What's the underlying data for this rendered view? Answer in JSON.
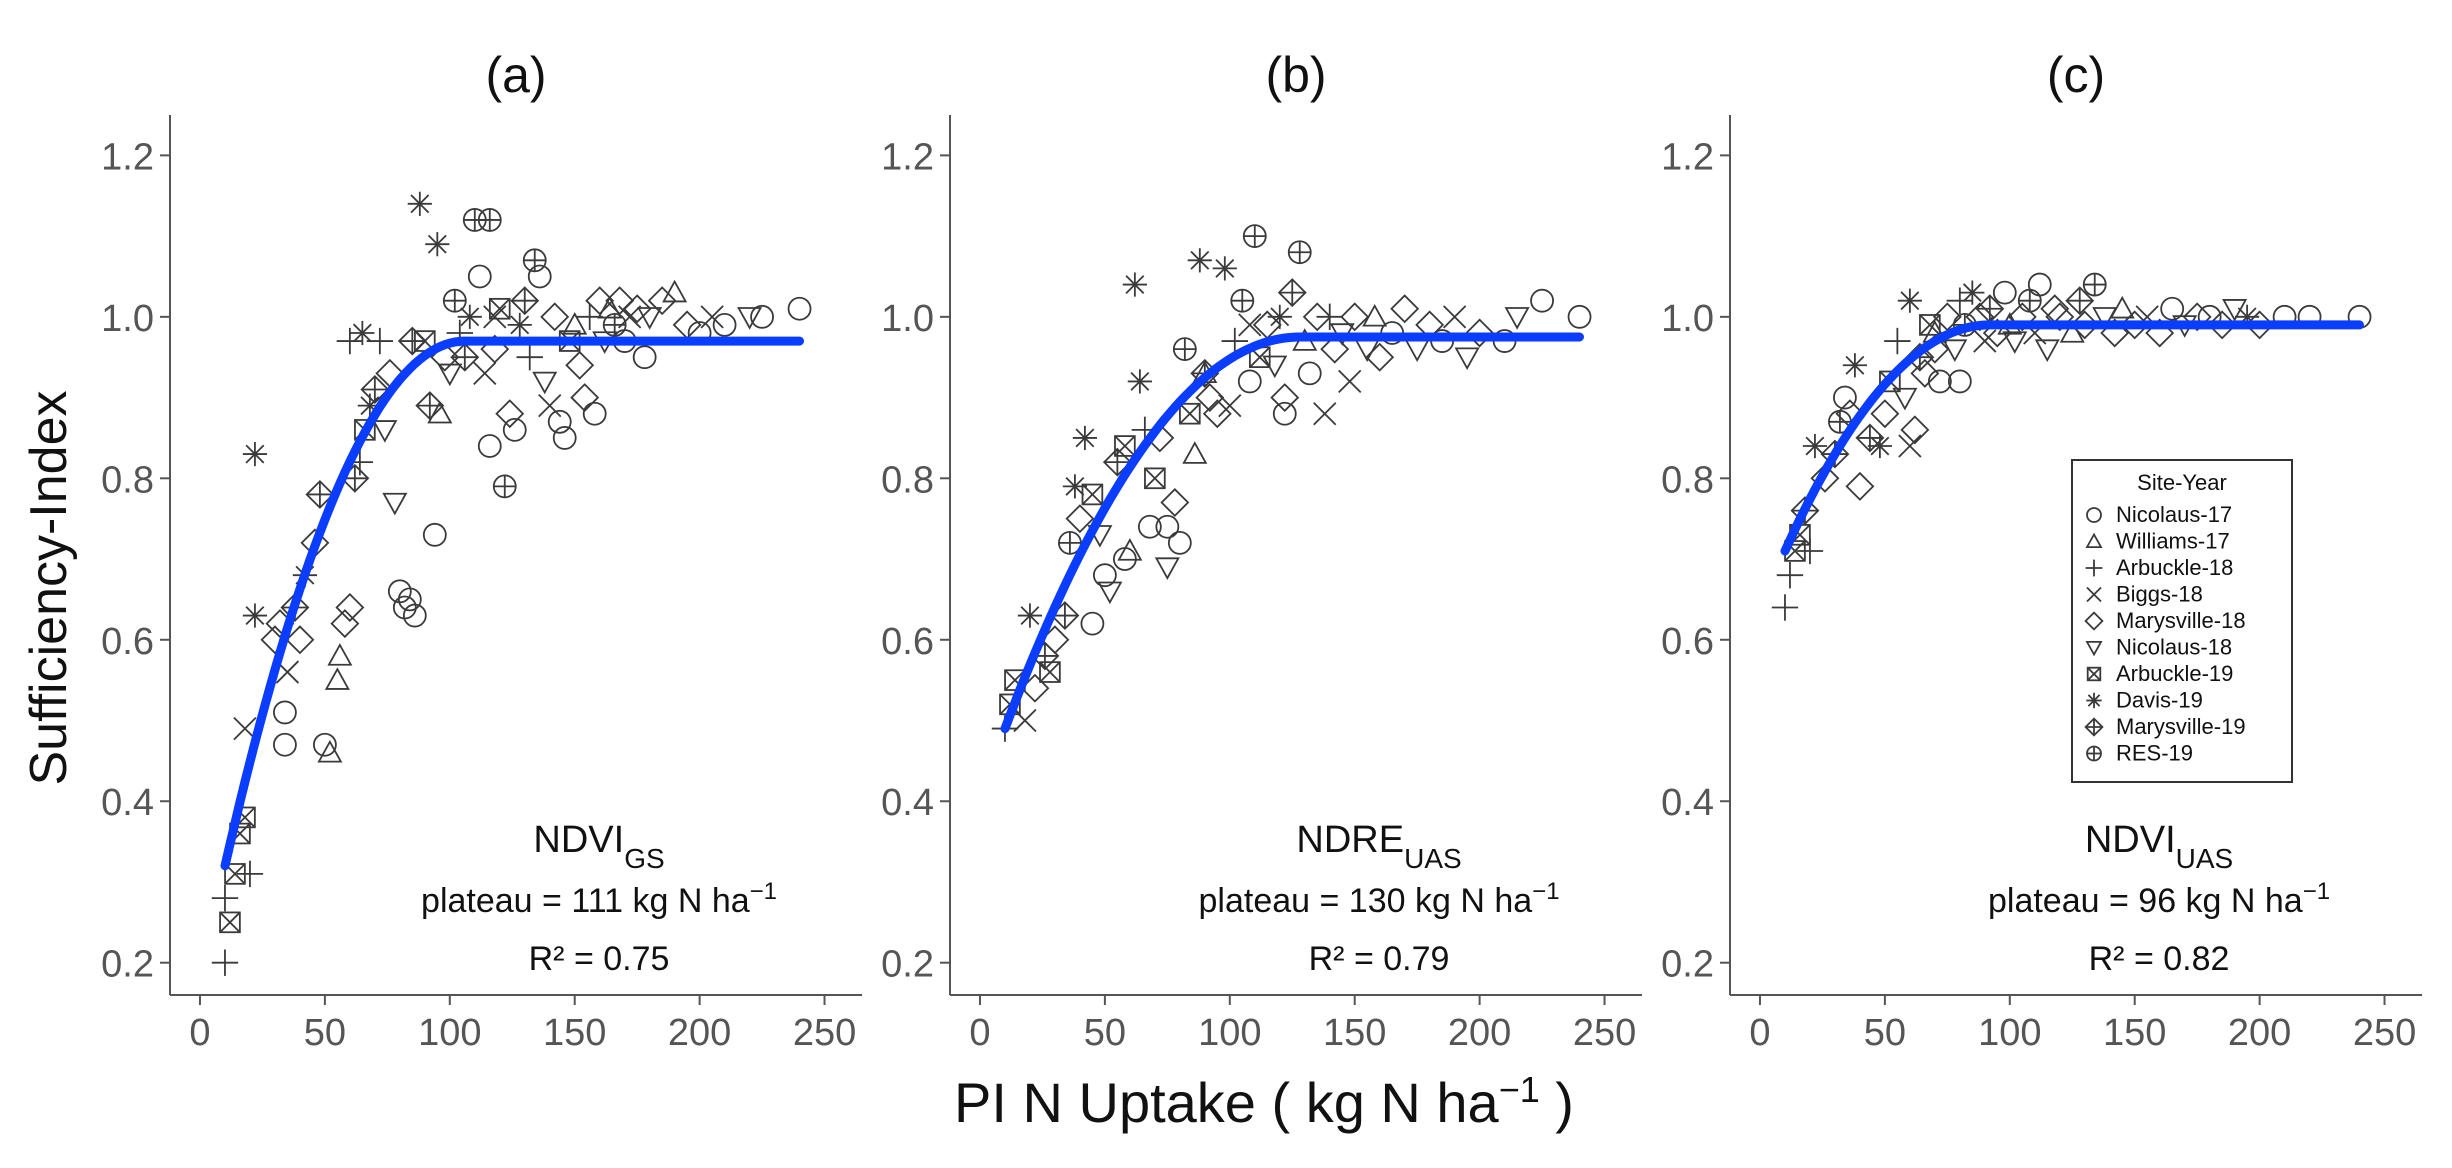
{
  "figure": {
    "ylabel": "Sufficiency-Index",
    "xlabel_main": "PI N Uptake ( kg N ha",
    "xlabel_sup": "−1",
    "xlabel_end": " )"
  },
  "legend": {
    "title": "Site-Year",
    "entries": [
      {
        "name": "Nicolaus-17",
        "marker": "circle"
      },
      {
        "name": "Williams-17",
        "marker": "triangle-up"
      },
      {
        "name": "Arbuckle-18",
        "marker": "plus"
      },
      {
        "name": "Biggs-18",
        "marker": "cross"
      },
      {
        "name": "Marysville-18",
        "marker": "diamond"
      },
      {
        "name": "Nicolaus-18",
        "marker": "triangle-down"
      },
      {
        "name": "Arbuckle-19",
        "marker": "square-cross"
      },
      {
        "name": "Davis-19",
        "marker": "asterisk"
      },
      {
        "name": "Marysville-19",
        "marker": "diamond-plus"
      },
      {
        "name": "RES-19",
        "marker": "circle-plus"
      }
    ]
  },
  "colors": {
    "fit": "#0a3dff",
    "points": "#3a3a3a",
    "axis": "#555555",
    "text": "#111111",
    "ticks": "#555555"
  },
  "chart_data": [
    {
      "type": "scatter",
      "panel_label": "(a)",
      "index_main": "NDVI",
      "index_sub": "GS",
      "plateau_text": "plateau = 111 kg N ha",
      "plateau_sup": "−1",
      "r2_text": "R² = 0.75",
      "xlim": [
        -12,
        265
      ],
      "ylim": [
        0.16,
        1.25
      ],
      "xticks": [
        0,
        50,
        100,
        150,
        200,
        250
      ],
      "yticks": [
        0.2,
        0.4,
        0.6,
        0.8,
        1.0,
        1.2
      ],
      "ytick_labels": [
        "0.2",
        "0.4",
        "0.6",
        "0.8",
        "1.0",
        "1.2"
      ],
      "fit": {
        "model": "quadratic-plateau",
        "x_start": 10,
        "x_plateau": 106,
        "y_start": 0.32,
        "plateau": 0.97,
        "x_end": 240,
        "plateau_xnote": 111
      },
      "points": [
        [
          10,
          0.2,
          2
        ],
        [
          10,
          0.28,
          2
        ],
        [
          12,
          0.25,
          6
        ],
        [
          14,
          0.31,
          6
        ],
        [
          16,
          0.36,
          6
        ],
        [
          18,
          0.38,
          6
        ],
        [
          20,
          0.31,
          2
        ],
        [
          18,
          0.49,
          3
        ],
        [
          22,
          0.83,
          7
        ],
        [
          22,
          0.63,
          7
        ],
        [
          30,
          0.6,
          4
        ],
        [
          32,
          0.62,
          4
        ],
        [
          34,
          0.47,
          0
        ],
        [
          34,
          0.51,
          0
        ],
        [
          35,
          0.56,
          3
        ],
        [
          38,
          0.64,
          8
        ],
        [
          40,
          0.6,
          4
        ],
        [
          42,
          0.68,
          7
        ],
        [
          46,
          0.72,
          4
        ],
        [
          48,
          0.78,
          8
        ],
        [
          50,
          0.47,
          0
        ],
        [
          52,
          0.46,
          1
        ],
        [
          55,
          0.55,
          1
        ],
        [
          56,
          0.58,
          1
        ],
        [
          58,
          0.62,
          4
        ],
        [
          60,
          0.64,
          4
        ],
        [
          62,
          0.8,
          8
        ],
        [
          64,
          0.82,
          2
        ],
        [
          66,
          0.86,
          6
        ],
        [
          68,
          0.89,
          7
        ],
        [
          70,
          0.91,
          8
        ],
        [
          72,
          0.97,
          2
        ],
        [
          74,
          0.86,
          5
        ],
        [
          76,
          0.93,
          4
        ],
        [
          78,
          0.77,
          5
        ],
        [
          80,
          0.66,
          0
        ],
        [
          82,
          0.64,
          0
        ],
        [
          84,
          0.65,
          0
        ],
        [
          86,
          0.63,
          0
        ],
        [
          88,
          1.14,
          7
        ],
        [
          90,
          0.97,
          6
        ],
        [
          92,
          0.89,
          8
        ],
        [
          94,
          0.73,
          0
        ],
        [
          96,
          0.88,
          1
        ],
        [
          98,
          0.95,
          4
        ],
        [
          100,
          0.93,
          5
        ],
        [
          102,
          1.02,
          9
        ],
        [
          104,
          0.98,
          2
        ],
        [
          106,
          0.95,
          8
        ],
        [
          108,
          1.0,
          7
        ],
        [
          110,
          1.12,
          9
        ],
        [
          112,
          1.05,
          0
        ],
        [
          114,
          0.93,
          3
        ],
        [
          116,
          0.84,
          0
        ],
        [
          118,
          0.96,
          4
        ],
        [
          120,
          1.01,
          6
        ],
        [
          122,
          0.79,
          9
        ],
        [
          124,
          0.88,
          4
        ],
        [
          126,
          0.86,
          0
        ],
        [
          128,
          0.99,
          7
        ],
        [
          130,
          1.02,
          8
        ],
        [
          132,
          0.95,
          2
        ],
        [
          134,
          1.07,
          9
        ],
        [
          136,
          1.05,
          0
        ],
        [
          138,
          0.92,
          5
        ],
        [
          140,
          0.89,
          3
        ],
        [
          142,
          1.0,
          4
        ],
        [
          144,
          0.87,
          0
        ],
        [
          146,
          0.85,
          0
        ],
        [
          148,
          0.97,
          6
        ],
        [
          150,
          0.99,
          1
        ],
        [
          152,
          0.94,
          4
        ],
        [
          154,
          0.9,
          4
        ],
        [
          156,
          1.0,
          2
        ],
        [
          158,
          0.88,
          0
        ],
        [
          160,
          1.02,
          4
        ],
        [
          162,
          0.97,
          5
        ],
        [
          164,
          1.01,
          1
        ],
        [
          166,
          0.99,
          9
        ],
        [
          168,
          1.02,
          4
        ],
        [
          170,
          0.97,
          0
        ],
        [
          172,
          1.0,
          3
        ],
        [
          175,
          1.01,
          4
        ],
        [
          178,
          0.95,
          0
        ],
        [
          180,
          1.0,
          5
        ],
        [
          185,
          1.02,
          4
        ],
        [
          190,
          1.03,
          1
        ],
        [
          195,
          0.99,
          4
        ],
        [
          200,
          0.98,
          0
        ],
        [
          205,
          1.0,
          3
        ],
        [
          210,
          0.99,
          0
        ],
        [
          220,
          1.0,
          5
        ],
        [
          225,
          1.0,
          0
        ],
        [
          240,
          1.01,
          0
        ],
        [
          60,
          0.97,
          2
        ],
        [
          65,
          0.98,
          7
        ],
        [
          85,
          0.97,
          8
        ],
        [
          95,
          1.09,
          7
        ],
        [
          116,
          1.12,
          9
        ],
        [
          118,
          1.0,
          3
        ]
      ]
    },
    {
      "type": "scatter",
      "panel_label": "(b)",
      "index_main": "NDRE",
      "index_sub": "UAS",
      "plateau_text": "plateau = 130 kg N ha",
      "plateau_sup": "−1",
      "r2_text": "R² = 0.79",
      "xlim": [
        -12,
        265
      ],
      "ylim": [
        0.16,
        1.25
      ],
      "xticks": [
        0,
        50,
        100,
        150,
        200,
        250
      ],
      "yticks": [
        0.2,
        0.4,
        0.6,
        0.8,
        1.0,
        1.2
      ],
      "ytick_labels": [
        "0.2",
        "0.4",
        "0.6",
        "0.8",
        "1.0",
        "1.2"
      ],
      "fit": {
        "model": "quadratic-plateau",
        "x_start": 10,
        "x_plateau": 128,
        "y_start": 0.49,
        "plateau": 0.975,
        "x_end": 240,
        "plateau_xnote": 130
      },
      "points": [
        [
          10,
          0.49,
          2
        ],
        [
          12,
          0.52,
          6
        ],
        [
          14,
          0.55,
          6
        ],
        [
          18,
          0.5,
          3
        ],
        [
          20,
          0.63,
          7
        ],
        [
          22,
          0.54,
          4
        ],
        [
          26,
          0.58,
          8
        ],
        [
          28,
          0.56,
          6
        ],
        [
          30,
          0.6,
          4
        ],
        [
          34,
          0.63,
          8
        ],
        [
          36,
          0.72,
          9
        ],
        [
          38,
          0.79,
          7
        ],
        [
          40,
          0.75,
          4
        ],
        [
          42,
          0.85,
          7
        ],
        [
          45,
          0.78,
          6
        ],
        [
          48,
          0.73,
          5
        ],
        [
          50,
          0.68,
          0
        ],
        [
          52,
          0.66,
          5
        ],
        [
          55,
          0.82,
          8
        ],
        [
          58,
          0.84,
          6
        ],
        [
          60,
          0.71,
          1
        ],
        [
          62,
          1.04,
          7
        ],
        [
          64,
          0.92,
          7
        ],
        [
          66,
          0.86,
          2
        ],
        [
          68,
          0.74,
          0
        ],
        [
          70,
          0.8,
          6
        ],
        [
          72,
          0.85,
          4
        ],
        [
          75,
          0.69,
          5
        ],
        [
          78,
          0.77,
          4
        ],
        [
          80,
          0.72,
          0
        ],
        [
          82,
          0.96,
          9
        ],
        [
          84,
          0.88,
          6
        ],
        [
          86,
          0.83,
          1
        ],
        [
          88,
          1.07,
          7
        ],
        [
          90,
          0.93,
          8
        ],
        [
          92,
          0.9,
          4
        ],
        [
          95,
          0.88,
          4
        ],
        [
          98,
          1.06,
          7
        ],
        [
          100,
          0.89,
          3
        ],
        [
          102,
          0.97,
          2
        ],
        [
          105,
          1.02,
          9
        ],
        [
          108,
          0.92,
          0
        ],
        [
          110,
          1.1,
          9
        ],
        [
          112,
          0.95,
          6
        ],
        [
          115,
          0.99,
          4
        ],
        [
          118,
          0.94,
          5
        ],
        [
          120,
          1.0,
          7
        ],
        [
          122,
          0.88,
          0
        ],
        [
          125,
          1.03,
          8
        ],
        [
          128,
          1.08,
          9
        ],
        [
          130,
          0.97,
          1
        ],
        [
          132,
          0.93,
          0
        ],
        [
          135,
          1.0,
          4
        ],
        [
          138,
          0.88,
          3
        ],
        [
          140,
          1.0,
          2
        ],
        [
          142,
          0.96,
          4
        ],
        [
          145,
          0.98,
          5
        ],
        [
          148,
          0.92,
          3
        ],
        [
          150,
          1.0,
          4
        ],
        [
          155,
          0.96,
          5
        ],
        [
          158,
          1.0,
          1
        ],
        [
          160,
          0.95,
          4
        ],
        [
          165,
          0.98,
          0
        ],
        [
          170,
          1.01,
          4
        ],
        [
          175,
          0.96,
          5
        ],
        [
          180,
          0.99,
          4
        ],
        [
          185,
          0.97,
          0
        ],
        [
          190,
          1.0,
          3
        ],
        [
          195,
          0.95,
          5
        ],
        [
          200,
          0.98,
          4
        ],
        [
          210,
          0.97,
          0
        ],
        [
          215,
          1.0,
          5
        ],
        [
          225,
          1.02,
          0
        ],
        [
          240,
          1.0,
          0
        ],
        [
          45,
          0.62,
          0
        ],
        [
          58,
          0.7,
          0
        ],
        [
          75,
          0.74,
          0
        ],
        [
          90,
          0.93,
          1
        ],
        [
          108,
          0.99,
          3
        ],
        [
          122,
          0.9,
          4
        ]
      ]
    },
    {
      "type": "scatter",
      "panel_label": "(c)",
      "index_main": "NDVI",
      "index_sub": "UAS",
      "plateau_text": "plateau = 96 kg N ha",
      "plateau_sup": "−1",
      "r2_text": "R² = 0.82",
      "xlim": [
        -12,
        265
      ],
      "ylim": [
        0.16,
        1.25
      ],
      "xticks": [
        0,
        50,
        100,
        150,
        200,
        250
      ],
      "yticks": [
        0.2,
        0.4,
        0.6,
        0.8,
        1.0,
        1.2
      ],
      "ytick_labels": [
        "0.2",
        "0.4",
        "0.6",
        "0.8",
        "1.0",
        "1.2"
      ],
      "fit": {
        "model": "quadratic-plateau",
        "x_start": 10,
        "x_plateau": 92,
        "y_start": 0.71,
        "plateau": 0.99,
        "x_end": 240,
        "plateau_xnote": 96
      },
      "points": [
        [
          10,
          0.64,
          2
        ],
        [
          12,
          0.68,
          2
        ],
        [
          14,
          0.71,
          6
        ],
        [
          16,
          0.73,
          6
        ],
        [
          18,
          0.76,
          8
        ],
        [
          20,
          0.71,
          2
        ],
        [
          22,
          0.84,
          7
        ],
        [
          26,
          0.8,
          4
        ],
        [
          30,
          0.83,
          8
        ],
        [
          32,
          0.87,
          9
        ],
        [
          34,
          0.9,
          0
        ],
        [
          36,
          0.88,
          4
        ],
        [
          38,
          0.94,
          7
        ],
        [
          40,
          0.79,
          4
        ],
        [
          44,
          0.85,
          8
        ],
        [
          48,
          0.84,
          7
        ],
        [
          50,
          0.88,
          4
        ],
        [
          52,
          0.92,
          6
        ],
        [
          55,
          0.97,
          2
        ],
        [
          58,
          0.9,
          5
        ],
        [
          60,
          1.02,
          7
        ],
        [
          62,
          0.86,
          4
        ],
        [
          64,
          0.95,
          8
        ],
        [
          66,
          0.93,
          4
        ],
        [
          68,
          0.99,
          6
        ],
        [
          70,
          0.98,
          1
        ],
        [
          72,
          0.92,
          0
        ],
        [
          75,
          1.0,
          4
        ],
        [
          78,
          0.96,
          5
        ],
        [
          80,
          1.02,
          2
        ],
        [
          82,
          0.99,
          9
        ],
        [
          85,
          1.03,
          7
        ],
        [
          88,
          1.0,
          4
        ],
        [
          90,
          0.97,
          3
        ],
        [
          92,
          1.01,
          8
        ],
        [
          95,
          0.98,
          4
        ],
        [
          98,
          1.03,
          0
        ],
        [
          100,
          0.99,
          1
        ],
        [
          102,
          0.97,
          5
        ],
        [
          105,
          1.0,
          4
        ],
        [
          108,
          1.02,
          9
        ],
        [
          110,
          0.98,
          3
        ],
        [
          112,
          1.04,
          0
        ],
        [
          115,
          0.96,
          5
        ],
        [
          118,
          1.01,
          4
        ],
        [
          120,
          1.0,
          4
        ],
        [
          125,
          0.98,
          1
        ],
        [
          128,
          1.02,
          8
        ],
        [
          130,
          0.99,
          4
        ],
        [
          134,
          1.04,
          9
        ],
        [
          138,
          1.0,
          5
        ],
        [
          142,
          0.98,
          4
        ],
        [
          145,
          1.01,
          1
        ],
        [
          150,
          0.99,
          4
        ],
        [
          155,
          1.0,
          3
        ],
        [
          160,
          0.98,
          4
        ],
        [
          165,
          1.01,
          0
        ],
        [
          170,
          0.99,
          5
        ],
        [
          175,
          1.0,
          4
        ],
        [
          180,
          1.0,
          0
        ],
        [
          185,
          0.99,
          4
        ],
        [
          190,
          1.01,
          5
        ],
        [
          195,
          1.0,
          7
        ],
        [
          200,
          0.99,
          4
        ],
        [
          210,
          1.0,
          0
        ],
        [
          220,
          1.0,
          0
        ],
        [
          240,
          1.0,
          0
        ],
        [
          60,
          0.84,
          3
        ],
        [
          80,
          0.92,
          0
        ],
        [
          70,
          0.96,
          4
        ]
      ]
    }
  ]
}
